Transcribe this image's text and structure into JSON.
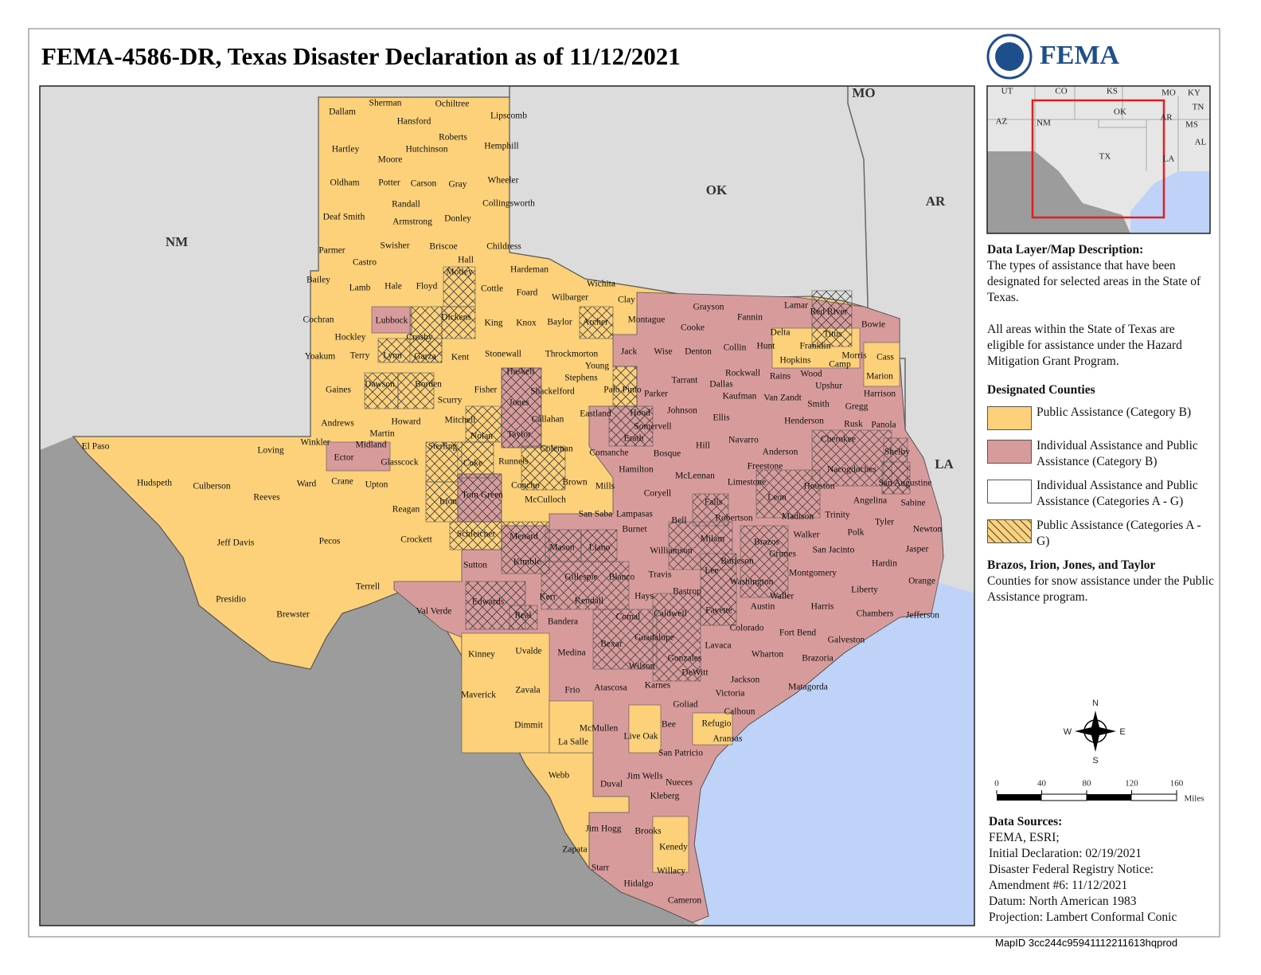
{
  "title": "FEMA-4586-DR, Texas Disaster Declaration as of 11/12/2021",
  "logo_text": "FEMA",
  "map": {
    "neighbors": [
      "NM",
      "OK",
      "AR",
      "LA",
      "MO"
    ],
    "counties": [
      "Dallam",
      "Sherman",
      "Ochiltree",
      "Lipscomb",
      "Hansford",
      "Hartley",
      "Hutchinson",
      "Roberts",
      "Hemphill",
      "Moore",
      "Oldham",
      "Potter",
      "Carson",
      "Gray",
      "Wheeler",
      "Randall",
      "Collingsworth",
      "Deaf Smith",
      "Armstrong",
      "Donley",
      "Parmer",
      "Swisher",
      "Briscoe",
      "Childress",
      "Castro",
      "Hall",
      "Hardeman",
      "Bailey",
      "Lamb",
      "Hale",
      "Floyd",
      "Motley",
      "Cottle",
      "Foard",
      "Wilbarger",
      "Wichita",
      "Clay",
      "Cochran",
      "Lubbock",
      "Crosby",
      "Dickens",
      "King",
      "Knox",
      "Baylor",
      "Archer",
      "Montague",
      "Grayson",
      "Fannin",
      "Lamar",
      "Red River",
      "Bowie",
      "Cooke",
      "Hockley",
      "Yoakum",
      "Terry",
      "Lynn",
      "Garza",
      "Kent",
      "Stonewall",
      "Throckmorton",
      "Young",
      "Jack",
      "Wise",
      "Denton",
      "Collin",
      "Hunt",
      "Delta",
      "Titus",
      "Franklin",
      "Hopkins",
      "Morris",
      "Camp",
      "Cass",
      "Marion",
      "Gaines",
      "Dawson",
      "Borden",
      "Scurry",
      "Fisher",
      "Haskell",
      "Jones",
      "Shackelford",
      "Stephens",
      "Palo Pinto",
      "Parker",
      "Tarrant",
      "Dallas",
      "Rockwall",
      "Kaufman",
      "Rains",
      "Wood",
      "Upshur",
      "Van Zandt",
      "Harrison",
      "Gregg",
      "Smith",
      "Andrews",
      "Martin",
      "Howard",
      "Mitchell",
      "Nolan",
      "Taylor",
      "Callahan",
      "Eastland",
      "Hood",
      "Johnson",
      "Ellis",
      "Henderson",
      "Rusk",
      "Panola",
      "Somervell",
      "Erath",
      "Navarro",
      "Cherokee",
      "Winkler",
      "Midland",
      "Ector",
      "Loving",
      "El Paso",
      "Sterling",
      "Coke",
      "Runnels",
      "Coleman",
      "Comanche",
      "Bosque",
      "Hill",
      "Freestone",
      "Anderson",
      "Nacogdoches",
      "Shelby",
      "Glasscock",
      "Hamilton",
      "Hudspeth",
      "Culberson",
      "Reeves",
      "Ward",
      "Crane",
      "Upton",
      "Tom Green",
      "Concho",
      "Brown",
      "Mills",
      "Coryell",
      "McLennan",
      "Limestone",
      "Leon",
      "Houston",
      "San Augustine",
      "Irion",
      "McCulloch",
      "Reagan",
      "Falls",
      "Lampasas",
      "San Saba",
      "Angelina",
      "Sabine",
      "Trinity",
      "Madison",
      "Robertson",
      "Bell",
      "Tyler",
      "Newton",
      "Polk",
      "Burnet",
      "Jeff Davis",
      "Pecos",
      "Crockett",
      "Schleicher",
      "Menard",
      "Mason",
      "Llano",
      "Milam",
      "Walker",
      "Brazos",
      "Grimes",
      "Williamson",
      "San Jacinto",
      "Jasper",
      "Burleson",
      "Sutton",
      "Kimble",
      "Hardin",
      "Montgomery",
      "Lee",
      "Gillespie",
      "Blanco",
      "Travis",
      "Washington",
      "Orange",
      "Terrell",
      "Liberty",
      "Presidio",
      "Bastrop",
      "Waller",
      "Kerr",
      "Kendall",
      "Hays",
      "Edwards",
      "Harris",
      "Austin",
      "Fayette",
      "Val Verde",
      "Real",
      "Brewster",
      "Comal",
      "Caldwell",
      "Chambers",
      "Jefferson",
      "Bandera",
      "Colorado",
      "Fort Bend",
      "Bexar",
      "Guadalupe",
      "Lavaca",
      "Galveston",
      "Kinney",
      "Uvalde",
      "Medina",
      "Wharton",
      "Brazoria",
      "Gonzales",
      "Wilson",
      "DeWitt",
      "Jackson",
      "Maverick",
      "Zavala",
      "Frio",
      "Atascosa",
      "Karnes",
      "Victoria",
      "Matagorda",
      "Goliad",
      "Calhoun",
      "Dimmit",
      "McMullen",
      "Live Oak",
      "Bee",
      "Refugio",
      "La Salle",
      "Aransas",
      "San Patricio",
      "Webb",
      "Duval",
      "Jim Wells",
      "Nueces",
      "Kleberg",
      "Jim Hogg",
      "Brooks",
      "Kenedy",
      "Zapata",
      "Starr",
      "Willacy",
      "Hidalgo",
      "Cameron"
    ]
  },
  "inset": {
    "labels": [
      "UT",
      "CO",
      "KS",
      "MO",
      "KY",
      "TN",
      "AZ",
      "NM",
      "OK",
      "AR",
      "MS",
      "AL",
      "TX",
      "LA"
    ]
  },
  "description": {
    "heading": "Data Layer/Map Description:",
    "text": "The types of assistance that have been designated for selected areas in the State of Texas.",
    "text2": "All areas within the State of Texas are eligible for assistance under the Hazard Mitigation Grant Program."
  },
  "legend": {
    "heading": "Designated Counties",
    "items": [
      "Public Assistance (Category B)",
      "Individual Assistance and Public Assistance (Category B)",
      "Individual Assistance and Public Assistance (Categories A - G)",
      "Public Assistance (Categories A - G)"
    ]
  },
  "note": {
    "heading": "Brazos, Irion, Jones, and Taylor",
    "text": "Counties for snow assistance under the Public Assistance program."
  },
  "compass": [
    "N",
    "E",
    "S",
    "W"
  ],
  "scale": {
    "ticks": [
      0,
      40,
      80,
      120,
      160
    ],
    "unit": "Miles"
  },
  "sources": {
    "heading": "Data Sources:",
    "lines": [
      "FEMA, ESRI;",
      "Initial Declaration: 02/19/2021",
      "Disaster Federal Registry Notice:",
      "Amendment #6: 11/12/2021",
      "Datum: North American 1983",
      "Projection: Lambert Conformal Conic"
    ]
  },
  "map_id": "MapID 3cc244c95941112211613hqprod"
}
